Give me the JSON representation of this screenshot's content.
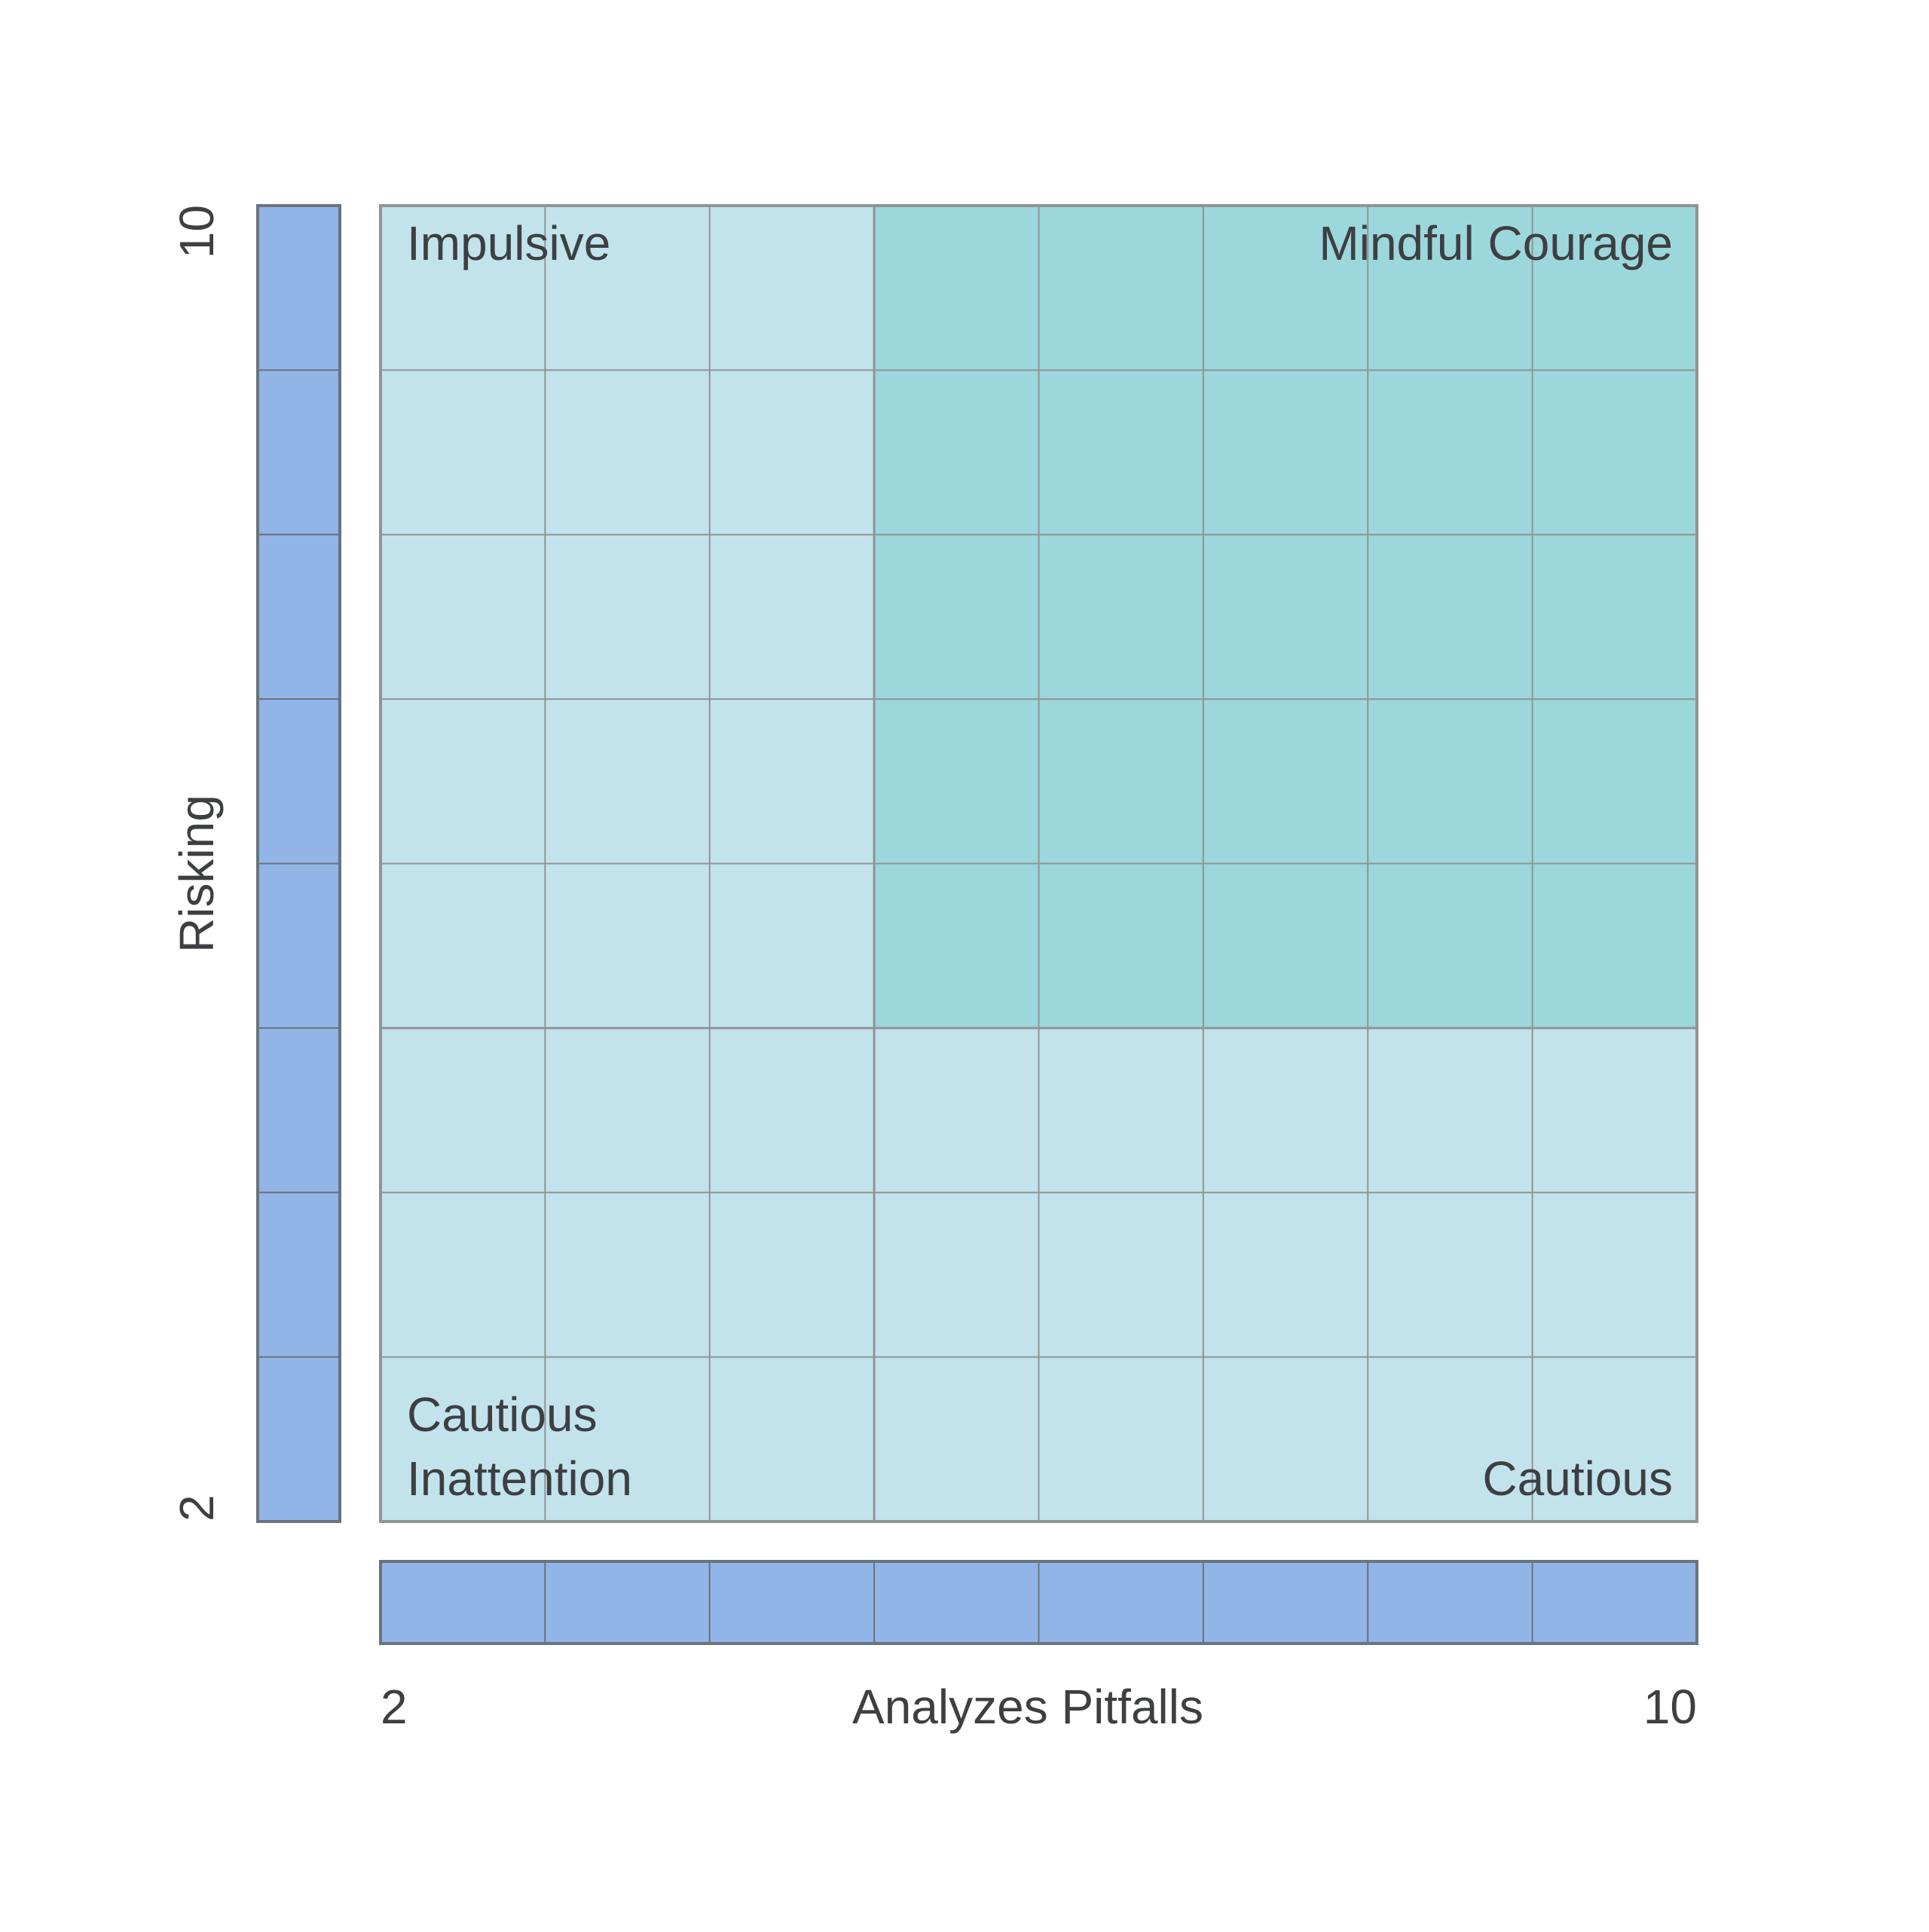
{
  "colors": {
    "background": "#ffffff",
    "cell_light": "#c2e3eb",
    "cell_highlight": "#9cd7db",
    "bar_fill": "#92b5e8",
    "grid_line": "#8f9496",
    "bar_border": "#6b737c",
    "text": "#3d3f42"
  },
  "grid": {
    "columns": 8,
    "rows": 8,
    "highlight": {
      "col_start": 3,
      "col_end": 7,
      "row_start": 0,
      "row_end": 4
    }
  },
  "quadrant_labels": {
    "top_left": "Impulsive",
    "top_right": "Mindful Courage",
    "bottom_left_line1": "Cautious",
    "bottom_left_line2": "Inattention",
    "bottom_right": "Cautious"
  },
  "x_axis": {
    "label": "Analyzes Pitfalls",
    "min_label": "2",
    "max_label": "10",
    "segments": 8
  },
  "y_axis": {
    "label": "Risking",
    "min_label": "2",
    "max_label": "10",
    "segments": 8
  }
}
